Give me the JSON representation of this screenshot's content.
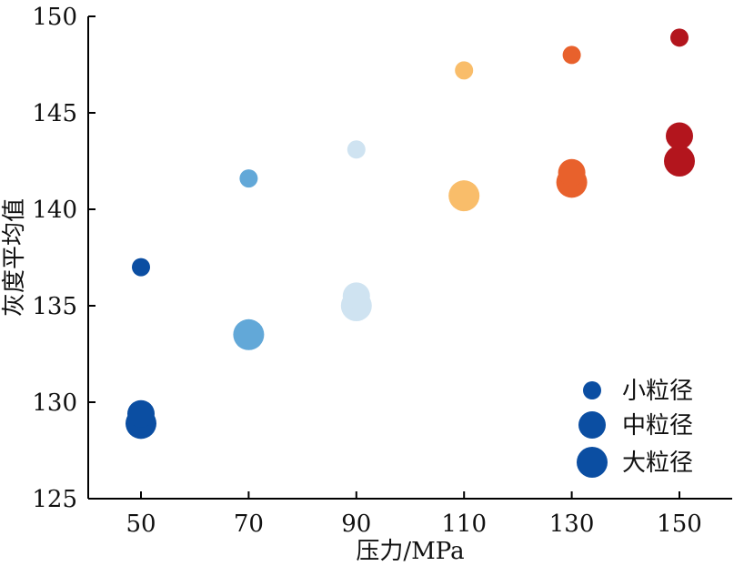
{
  "chart_data": {
    "type": "scatter",
    "xlabel": "压力/MPa",
    "ylabel": "灰度平均值",
    "xlim": [
      40,
      160
    ],
    "ylim": [
      125,
      150
    ],
    "xticks": [
      50,
      70,
      90,
      110,
      130,
      150
    ],
    "yticks": [
      125,
      130,
      135,
      140,
      145,
      150
    ],
    "grid": false,
    "legend_position": "bottom-right",
    "legend": [
      {
        "label": "小粒径",
        "size": "small"
      },
      {
        "label": "中粒径",
        "size": "medium"
      },
      {
        "label": "大粒径",
        "size": "large"
      }
    ],
    "legend_color": "#0b4ea2",
    "series": [
      {
        "name": "小粒径",
        "size": "small",
        "x": [
          50,
          70,
          90,
          110,
          130,
          150
        ],
        "y": [
          137.0,
          141.6,
          143.1,
          147.2,
          148.0,
          148.9
        ]
      },
      {
        "name": "中粒径",
        "size": "medium",
        "x": [
          50,
          70,
          90,
          110,
          130,
          150
        ],
        "y": [
          129.4,
          133.5,
          135.5,
          140.7,
          141.9,
          143.8
        ]
      },
      {
        "name": "大粒径",
        "size": "large",
        "x": [
          50,
          70,
          90,
          110,
          130,
          150
        ],
        "y": [
          128.9,
          133.5,
          135.0,
          140.7,
          141.4,
          142.5
        ]
      }
    ],
    "pressure_colors": {
      "50": "#0b4ea2",
      "70": "#62a8d8",
      "90": "#cfe3f1",
      "110": "#f9bd6a",
      "130": "#e8612c",
      "150": "#b3151d"
    }
  }
}
